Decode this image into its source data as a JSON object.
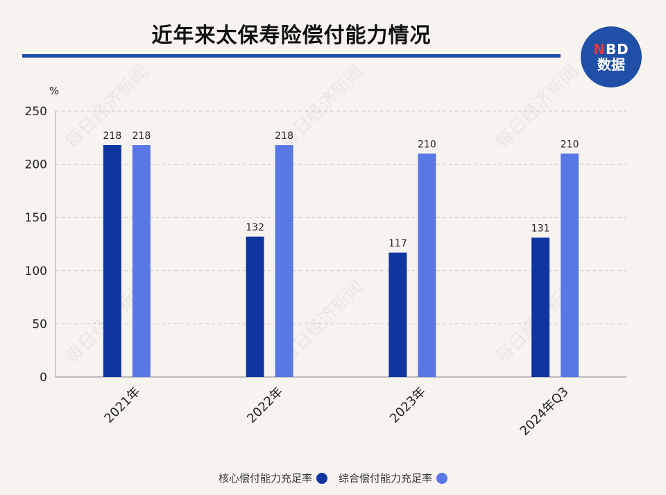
{
  "title": "近年来太保寿险偿付能力情况",
  "logo": {
    "line1_n": "N",
    "line1_rest": "BD",
    "line2": "数据"
  },
  "watermark": "每日经济新闻",
  "colors": {
    "core": "#0f35a0",
    "comprehensive": "#5a77e6",
    "accent": "#1f4ea8"
  },
  "chart_data": {
    "type": "bar",
    "ylabel": "%",
    "ylim": [
      0,
      250
    ],
    "yticks": [
      0,
      50,
      100,
      150,
      200,
      250
    ],
    "grid": true,
    "legend_position": "bottom",
    "categories": [
      "2021年",
      "2022年",
      "2023年",
      "2024年Q3"
    ],
    "series": [
      {
        "name": "核心偿付能力充足率",
        "values": [
          218,
          132,
          117,
          131
        ]
      },
      {
        "name": "综合偿付能力充足率",
        "values": [
          218,
          218,
          210,
          210
        ]
      }
    ]
  }
}
